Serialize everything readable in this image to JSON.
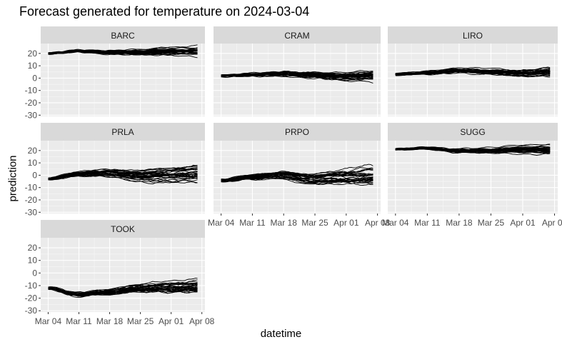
{
  "title": "Forecast generated for temperature on 2024-03-04",
  "chart_data": {
    "type": "line",
    "title": "Forecast generated for temperature on 2024-03-04",
    "xlabel": "datetime",
    "ylabel": "prediction",
    "x_range": [
      "2024-03-04",
      "2024-04-07"
    ],
    "x_ticks": [
      "Mar 04",
      "Mar 11",
      "Mar 18",
      "Mar 25",
      "Apr 01",
      "Apr 08"
    ],
    "y_ticks": [
      -30,
      -20,
      -10,
      0,
      10,
      20
    ],
    "ylim": [
      -31,
      28
    ],
    "grid": true,
    "facets": [
      {
        "site": "BARC",
        "ensemble_members": 30,
        "mean_by_week": [
          20,
          22,
          21,
          21,
          22,
          22
        ],
        "spread_start": 1,
        "spread_end": 4
      },
      {
        "site": "CRAM",
        "ensemble_members": 30,
        "mean_by_week": [
          2,
          3,
          4,
          3,
          2,
          3
        ],
        "spread_start": 1.5,
        "spread_end": 6
      },
      {
        "site": "LIRO",
        "ensemble_members": 30,
        "mean_by_week": [
          3,
          4,
          6,
          5,
          4,
          5
        ],
        "spread_start": 1.5,
        "spread_end": 6
      },
      {
        "site": "PRLA",
        "ensemble_members": 30,
        "mean_by_week": [
          -3,
          1,
          2,
          0,
          1,
          2
        ],
        "spread_start": 2,
        "spread_end": 9
      },
      {
        "site": "PRPO",
        "ensemble_members": 30,
        "mean_by_week": [
          -4,
          -1,
          1,
          -2,
          0,
          1
        ],
        "spread_start": 2,
        "spread_end": 9
      },
      {
        "site": "SUGG",
        "ensemble_members": 30,
        "mean_by_week": [
          21,
          22,
          20,
          20,
          21,
          21
        ],
        "spread_start": 1,
        "spread_end": 4
      },
      {
        "site": "TOOK",
        "ensemble_members": 30,
        "mean_by_week": [
          -12,
          -17,
          -15,
          -12,
          -11,
          -10
        ],
        "spread_start": 2,
        "spread_end": 8
      }
    ]
  }
}
